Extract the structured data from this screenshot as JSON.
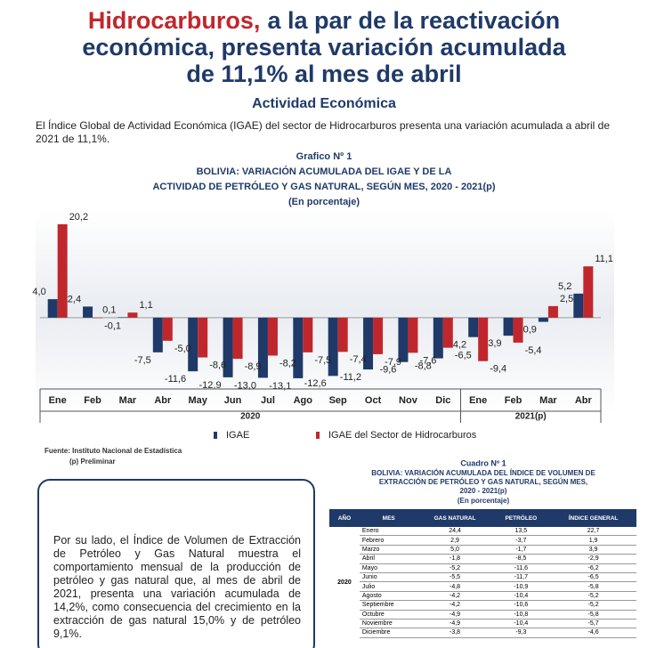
{
  "header": {
    "title_highlight": "Hidrocarburos,",
    "title_lines": [
      "a la par de la reactivación",
      "económica, presenta variación acumulada",
      "de 11,1% al mes de abril"
    ],
    "subtitle": "Actividad Económica",
    "intro": "El Índice Global de Actividad Económica (IGAE) del sector de Hidrocarburos presenta una variación acumulada a abril de 2021 de 11,1%."
  },
  "chart_data": {
    "type": "bar",
    "label": "Grafico Nº 1",
    "title_lines": [
      "BOLIVIA: VARIACIÓN ACUMULADA DEL IGAE Y DE LA",
      "ACTIVIDAD DE PETRÓLEO Y GAS NATURAL, SEGÚN MES, 2020 - 2021(p)"
    ],
    "subtitle": "(En porcentaje)",
    "categories": [
      "Ene",
      "Feb",
      "Mar",
      "Abr",
      "May",
      "Jun",
      "Jul",
      "Ago",
      "Sep",
      "Oct",
      "Nov",
      "Dic",
      "Ene",
      "Feb",
      "Mar",
      "Abr"
    ],
    "year_groups": [
      {
        "label": "2020",
        "count": 12
      },
      {
        "label": "2021(p)",
        "count": 4
      }
    ],
    "series": [
      {
        "name": "IGAE",
        "color": "#1f3a68",
        "values": [
          4.0,
          2.4,
          0.1,
          -7.5,
          -11.6,
          -12.9,
          -13.0,
          -13.1,
          -12.6,
          -11.2,
          -9.6,
          -8.8,
          -4.2,
          -3.9,
          -0.9,
          5.2
        ],
        "value_labels": [
          "4,0",
          "2,4",
          "0,1",
          "-7,5",
          "-11,6",
          "-12,9",
          "-13,0",
          "-13,1",
          "-12,6",
          "-11,2",
          "-9,6",
          "-8,8",
          "-4,2",
          "-3,9",
          "-0,9",
          "5,2"
        ]
      },
      {
        "name": "IGAE del Sector de Hidrocarburos",
        "color": "#c0272d",
        "values": [
          20.2,
          -0.1,
          1.1,
          -5.0,
          -8.6,
          -8.9,
          -8.2,
          -7.5,
          -7.4,
          -7.9,
          -7.6,
          -6.5,
          -9.4,
          -5.4,
          2.5,
          11.1
        ],
        "value_labels": [
          "20,2",
          "-0,1",
          "1,1",
          "-5,0",
          "-8,6",
          "-8,9",
          "-8,2",
          "-7,5",
          "-7,4",
          "-7,9",
          "-7,6",
          "-6,5",
          "-9,4",
          "-5,4",
          "2,5",
          "11,1"
        ]
      }
    ],
    "ylim": [
      -16,
      22.5
    ],
    "source": [
      "Fuente: Instituto Nacional de Estadística",
      "(p) Preliminar"
    ]
  },
  "box": {
    "text": "Por su lado, el Índice de Volumen de Extracción de Petróleo y Gas Natural muestra el comportamiento mensual de la producción de petróleo y gas natural que, al mes de abril de 2021, presenta una variación acumulada de 14,2%, como consecuencia del crecimiento en la extracción de gas natural 15,0% y de petróleo 9,1%."
  },
  "table": {
    "label": "Cuadro Nº 1",
    "title_lines": [
      "BOLIVIA: VARIACIÓN ACUMULADA DEL ÍNDICE DE VOLUMEN DE",
      "EXTRACCIÓN DE PETRÓLEO Y GAS NATURAL, SEGÚN MES,",
      "2020 - 2021(p)"
    ],
    "subtitle": "(En porcentaje)",
    "columns": [
      "AÑO",
      "MES",
      "GAS NATURAL",
      "PETRÓLEO",
      "ÍNDICE GENERAL"
    ],
    "groups": [
      {
        "year": "2020",
        "rows": [
          [
            "Enero",
            "24,4",
            "13,5",
            "22,7"
          ],
          [
            "Febrero",
            "2,9",
            "-3,7",
            "1,9"
          ],
          [
            "Marzo",
            "5,0",
            "-1,7",
            "3,9"
          ],
          [
            "Abril",
            "-1,8",
            "-8,5",
            "-2,9"
          ],
          [
            "Mayo",
            "-5,2",
            "-11,6",
            "-6,2"
          ],
          [
            "Junio",
            "-5,5",
            "-11,7",
            "-6,5"
          ],
          [
            "Julio",
            "-4,8",
            "-10,9",
            "-5,8"
          ],
          [
            "Agosto",
            "-4,2",
            "-10,4",
            "-5,2"
          ],
          [
            "Septiembre",
            "-4,2",
            "-10,6",
            "-5,2"
          ],
          [
            "Octubre",
            "-4,9",
            "-10,8",
            "-5,8"
          ],
          [
            "Noviembre",
            "-4,9",
            "-10,4",
            "-5,7"
          ],
          [
            "Diciembre",
            "-3,8",
            "-9,3",
            "-4,6"
          ]
        ]
      }
    ]
  }
}
